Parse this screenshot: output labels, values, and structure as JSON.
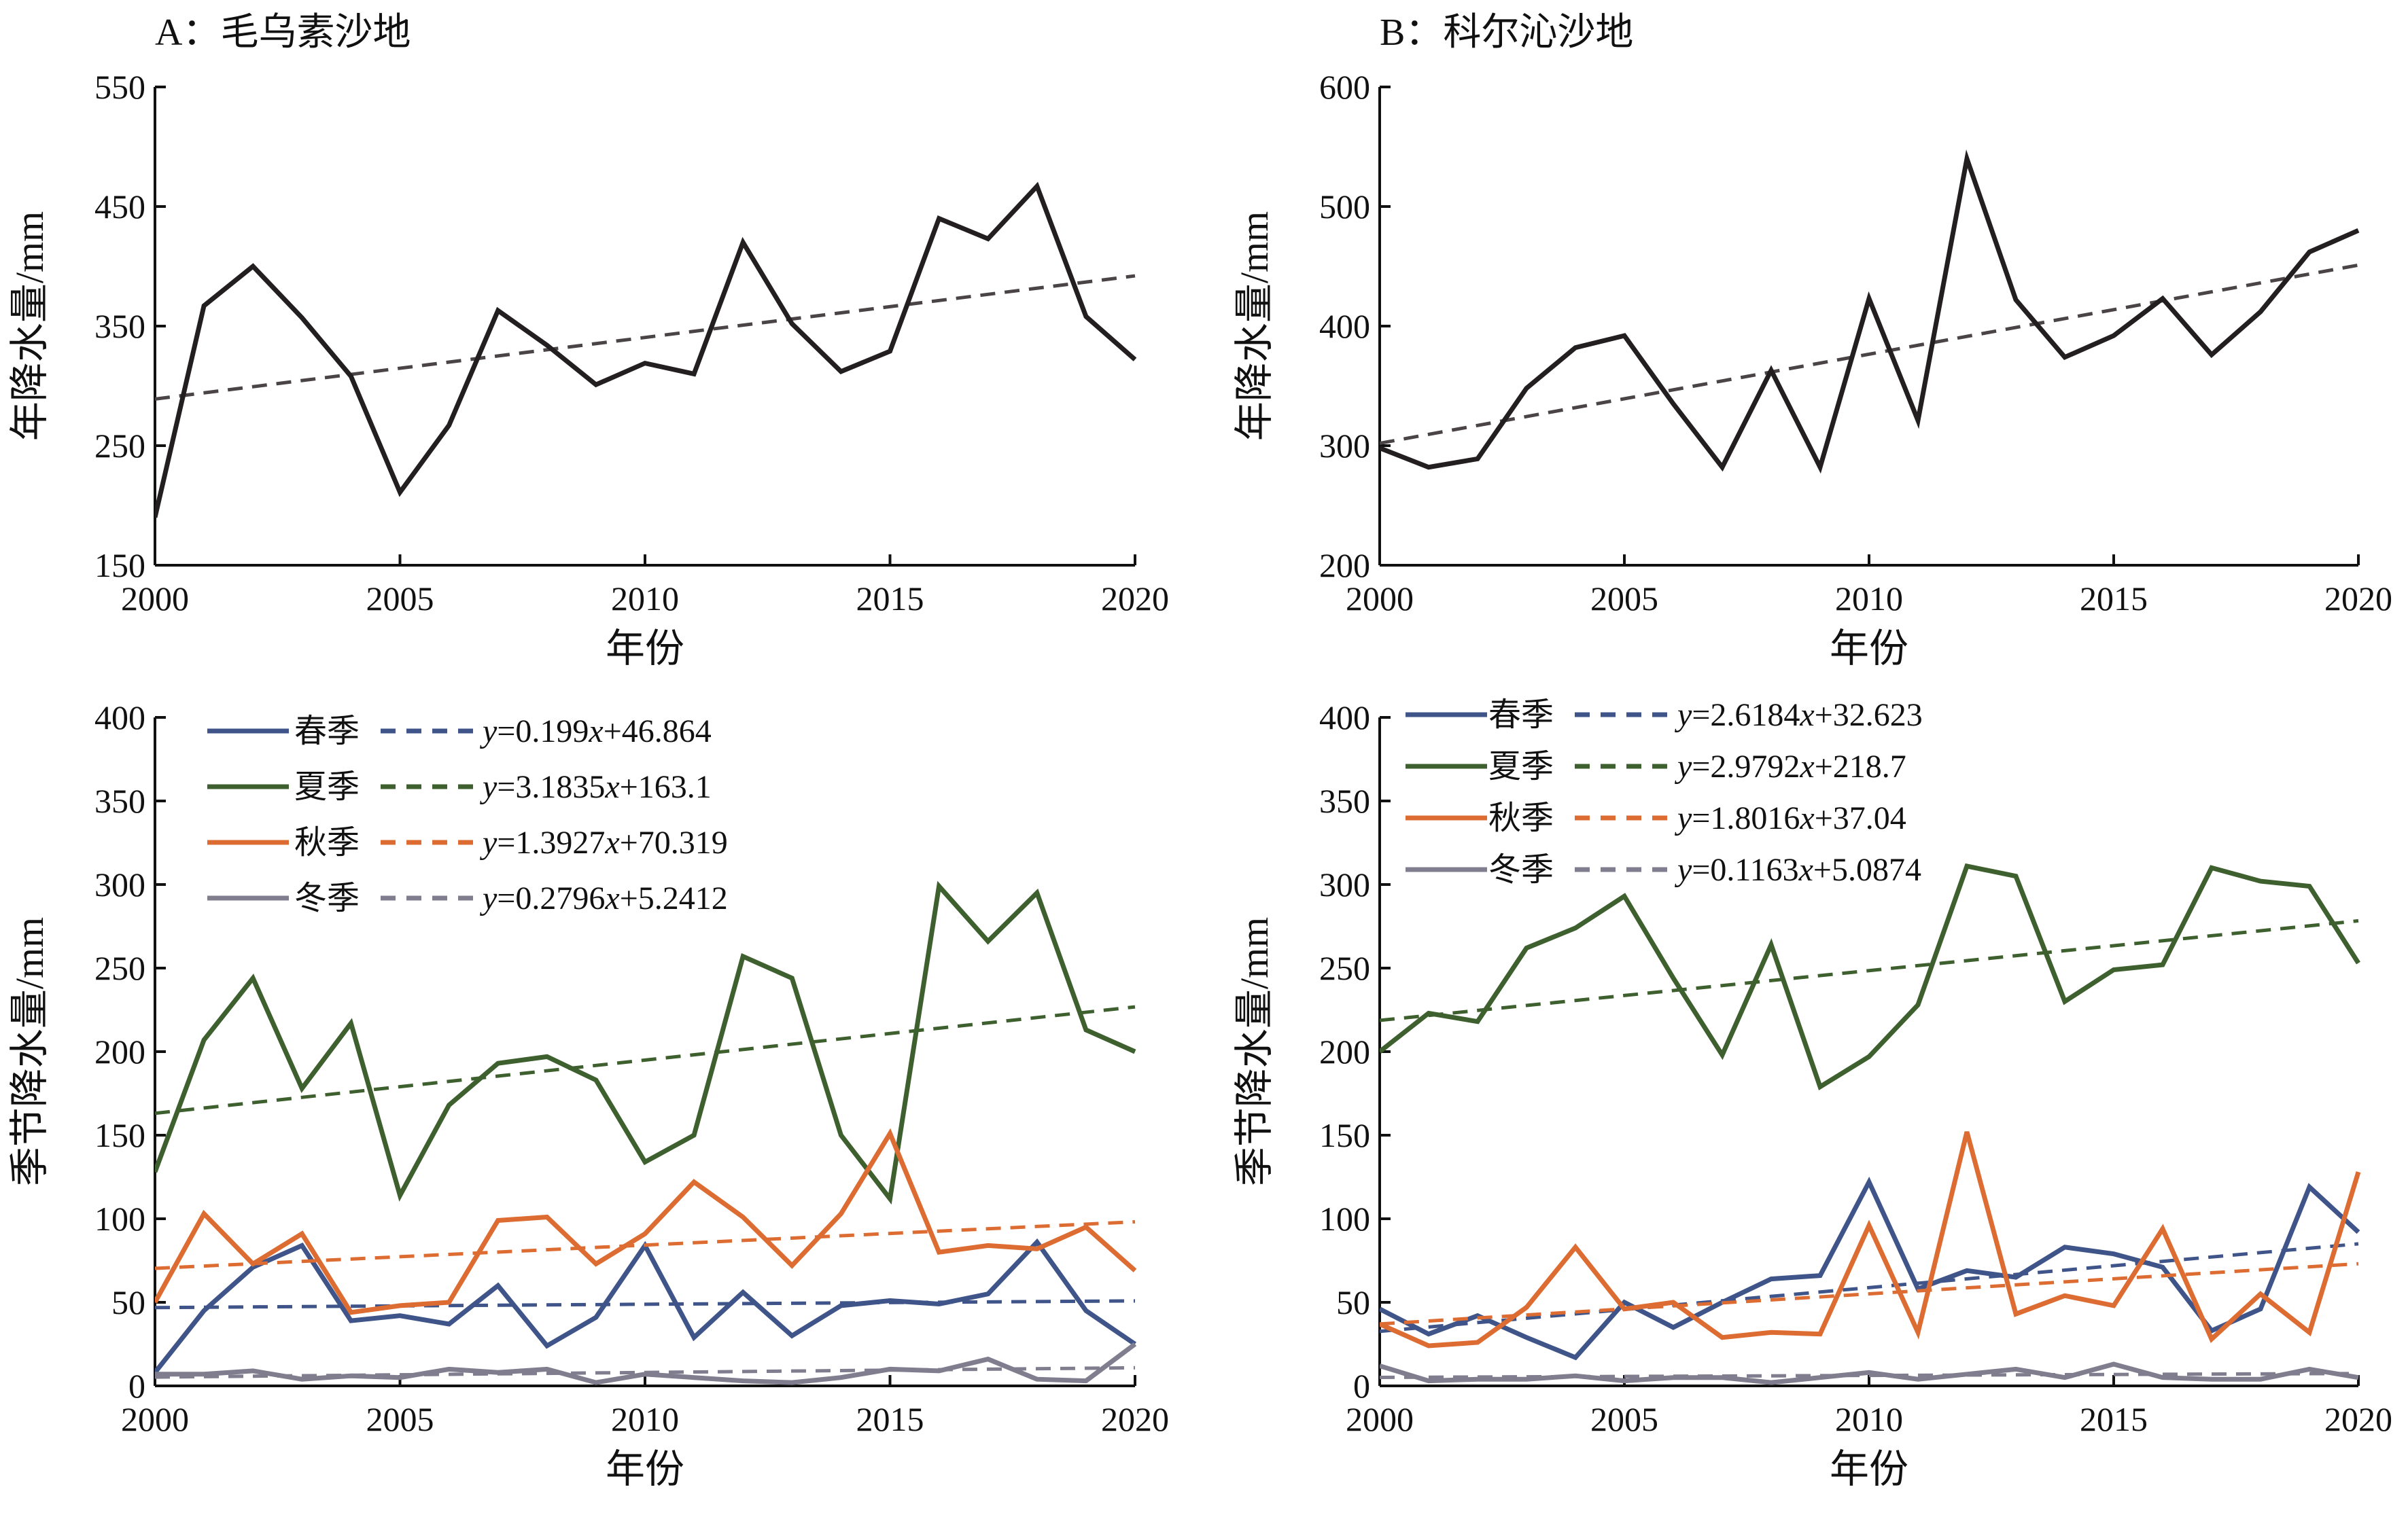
{
  "figure": {
    "panels": [
      {
        "id": "A-annual",
        "title": "A：毛乌素沙地",
        "xlabel": "年份",
        "ylabel": "年降水量/mm",
        "xlim": [
          2000,
          2020
        ],
        "ylim": [
          150,
          550
        ],
        "xticks": [
          2000,
          2005,
          2010,
          2015,
          2020
        ],
        "yticks": [
          150,
          250,
          350,
          450,
          550
        ]
      },
      {
        "id": "B-annual",
        "title": "B：科尔沁沙地",
        "xlabel": "年份",
        "ylabel": "年降水量/mm",
        "xlim": [
          2000,
          2020
        ],
        "ylim": [
          200,
          600
        ],
        "xticks": [
          2000,
          2005,
          2010,
          2015,
          2020
        ],
        "yticks": [
          200,
          300,
          400,
          500,
          600
        ]
      },
      {
        "id": "A-seasonal",
        "title": "",
        "xlabel": "年份",
        "ylabel": "季节降水量/mm",
        "xlim": [
          2000,
          2020
        ],
        "ylim": [
          0,
          400
        ],
        "xticks": [
          2000,
          2005,
          2010,
          2015,
          2020
        ],
        "yticks": [
          0,
          50,
          100,
          150,
          200,
          250,
          300,
          350,
          400
        ]
      },
      {
        "id": "B-seasonal",
        "title": "",
        "xlabel": "年份",
        "ylabel": "季节降水量/mm",
        "xlim": [
          2000,
          2020
        ],
        "ylim": [
          0,
          400
        ],
        "xticks": [
          2000,
          2005,
          2010,
          2015,
          2020
        ],
        "yticks": [
          0,
          50,
          100,
          150,
          200,
          250,
          300,
          350,
          400
        ]
      }
    ]
  },
  "chart_data": [
    {
      "type": "line",
      "title": "A：毛乌素沙地",
      "xlabel": "年份",
      "ylabel": "年降水量/mm",
      "xlim": [
        2000,
        2020
      ],
      "ylim": [
        150,
        550
      ],
      "grid": false,
      "x": [
        2000,
        2001,
        2002,
        2003,
        2004,
        2005,
        2006,
        2007,
        2008,
        2009,
        2010,
        2011,
        2012,
        2013,
        2014,
        2015,
        2016,
        2017,
        2018,
        2019,
        2020
      ],
      "series": [
        {
          "name": "",
          "color": "#231f20",
          "style": "solid",
          "values": [
            190,
            367,
            400,
            357,
            308,
            211,
            267,
            363,
            334,
            301,
            319,
            310,
            420,
            352,
            312,
            329,
            440,
            423,
            467,
            358,
            322
          ]
        }
      ],
      "trendlines": [
        {
          "color": "#4a4446",
          "style": "dashed",
          "start": [
            2000,
            289
          ],
          "end": [
            2020,
            392
          ]
        }
      ]
    },
    {
      "type": "line",
      "title": "B：科尔沁沙地",
      "xlabel": "年份",
      "ylabel": "年降水量/mm",
      "xlim": [
        2000,
        2020
      ],
      "ylim": [
        200,
        600
      ],
      "grid": false,
      "x": [
        2000,
        2001,
        2002,
        2003,
        2004,
        2005,
        2006,
        2007,
        2008,
        2009,
        2010,
        2011,
        2012,
        2013,
        2014,
        2015,
        2016,
        2017,
        2018,
        2019,
        2020
      ],
      "series": [
        {
          "name": "",
          "color": "#231f20",
          "style": "solid",
          "values": [
            298,
            282,
            289,
            348,
            382,
            392,
            335,
            282,
            363,
            282,
            423,
            321,
            540,
            422,
            374,
            392,
            423,
            376,
            412,
            462,
            480
          ]
        }
      ],
      "trendlines": [
        {
          "color": "#4a4446",
          "style": "dashed",
          "start": [
            2000,
            302
          ],
          "end": [
            2020,
            451
          ]
        }
      ]
    },
    {
      "type": "line",
      "title": "",
      "xlabel": "年份",
      "ylabel": "季节降水量/mm",
      "xlim": [
        2000,
        2020
      ],
      "ylim": [
        0,
        400
      ],
      "grid": false,
      "legend_position": "top-left",
      "x": [
        2000,
        2001,
        2002,
        2003,
        2004,
        2005,
        2006,
        2007,
        2008,
        2009,
        2010,
        2011,
        2012,
        2013,
        2014,
        2015,
        2016,
        2017,
        2018,
        2019,
        2020
      ],
      "series": [
        {
          "name": "春季",
          "color": "#3f5489",
          "values": [
            8,
            45,
            71,
            84,
            39,
            42,
            37,
            60,
            24,
            41,
            84,
            29,
            56,
            30,
            48,
            51,
            49,
            55,
            86,
            45,
            25
          ],
          "trend_label": "y=0.199x+46.864",
          "trend": [
            46.864,
            0.199
          ]
        },
        {
          "name": "夏季",
          "color": "#3e5f2e",
          "values": [
            128,
            207,
            244,
            178,
            217,
            114,
            168,
            193,
            197,
            183,
            134,
            150,
            257,
            244,
            150,
            112,
            299,
            266,
            295,
            213,
            200
          ],
          "trend_label": "y=3.1835x+163.1",
          "trend": [
            163.1,
            3.1835
          ]
        },
        {
          "name": "秋季",
          "color": "#dd6c32",
          "values": [
            50,
            103,
            73,
            91,
            44,
            48,
            50,
            99,
            101,
            73,
            91,
            122,
            101,
            72,
            103,
            151,
            80,
            84,
            82,
            95,
            69
          ],
          "trend_label": "y=1.3927x+70.319",
          "trend": [
            70.319,
            1.3927
          ]
        },
        {
          "name": "冬季",
          "color": "#7f7d8e",
          "values": [
            7,
            7,
            9,
            4,
            6,
            5,
            10,
            8,
            10,
            2,
            7,
            5,
            3,
            2,
            5,
            10,
            9,
            16,
            4,
            3,
            25
          ],
          "trend_label": "y=0.2796x+5.2412",
          "trend": [
            5.2412,
            0.2796
          ]
        }
      ]
    },
    {
      "type": "line",
      "title": "",
      "xlabel": "年份",
      "ylabel": "季节降水量/mm",
      "xlim": [
        2000,
        2020
      ],
      "ylim": [
        0,
        400
      ],
      "grid": false,
      "legend_position": "top-left",
      "x": [
        2000,
        2001,
        2002,
        2003,
        2004,
        2005,
        2006,
        2007,
        2008,
        2009,
        2010,
        2011,
        2012,
        2013,
        2014,
        2015,
        2016,
        2017,
        2018,
        2019,
        2020
      ],
      "series": [
        {
          "name": "春季",
          "color": "#3f5489",
          "values": [
            46,
            31,
            42,
            29,
            17,
            50,
            35,
            50,
            64,
            66,
            122,
            58,
            69,
            65,
            83,
            79,
            71,
            33,
            46,
            119,
            92
          ],
          "trend_label": "y=2.6184x+32.623",
          "trend": [
            32.623,
            2.6184
          ]
        },
        {
          "name": "夏季",
          "color": "#3e5f2e",
          "values": [
            200,
            223,
            218,
            262,
            274,
            293,
            244,
            198,
            264,
            179,
            197,
            228,
            311,
            305,
            230,
            249,
            252,
            310,
            302,
            299,
            253
          ],
          "trend_label": "y=2.9792x+218.7",
          "trend": [
            218.7,
            2.9792
          ]
        },
        {
          "name": "秋季",
          "color": "#dd6c32",
          "values": [
            37,
            24,
            26,
            47,
            83,
            46,
            50,
            29,
            32,
            31,
            96,
            32,
            152,
            43,
            54,
            48,
            94,
            28,
            55,
            32,
            128
          ],
          "trend_label": "y=1.8016x+37.04",
          "trend": [
            37.04,
            1.8016
          ]
        },
        {
          "name": "冬季",
          "color": "#7f7d8e",
          "values": [
            12,
            3,
            4,
            4,
            6,
            3,
            5,
            5,
            2,
            5,
            8,
            4,
            7,
            10,
            5,
            13,
            5,
            4,
            4,
            10,
            5
          ],
          "trend_label": "y=0.1163x+5.0874",
          "trend": [
            5.0874,
            0.1163
          ]
        }
      ]
    }
  ]
}
